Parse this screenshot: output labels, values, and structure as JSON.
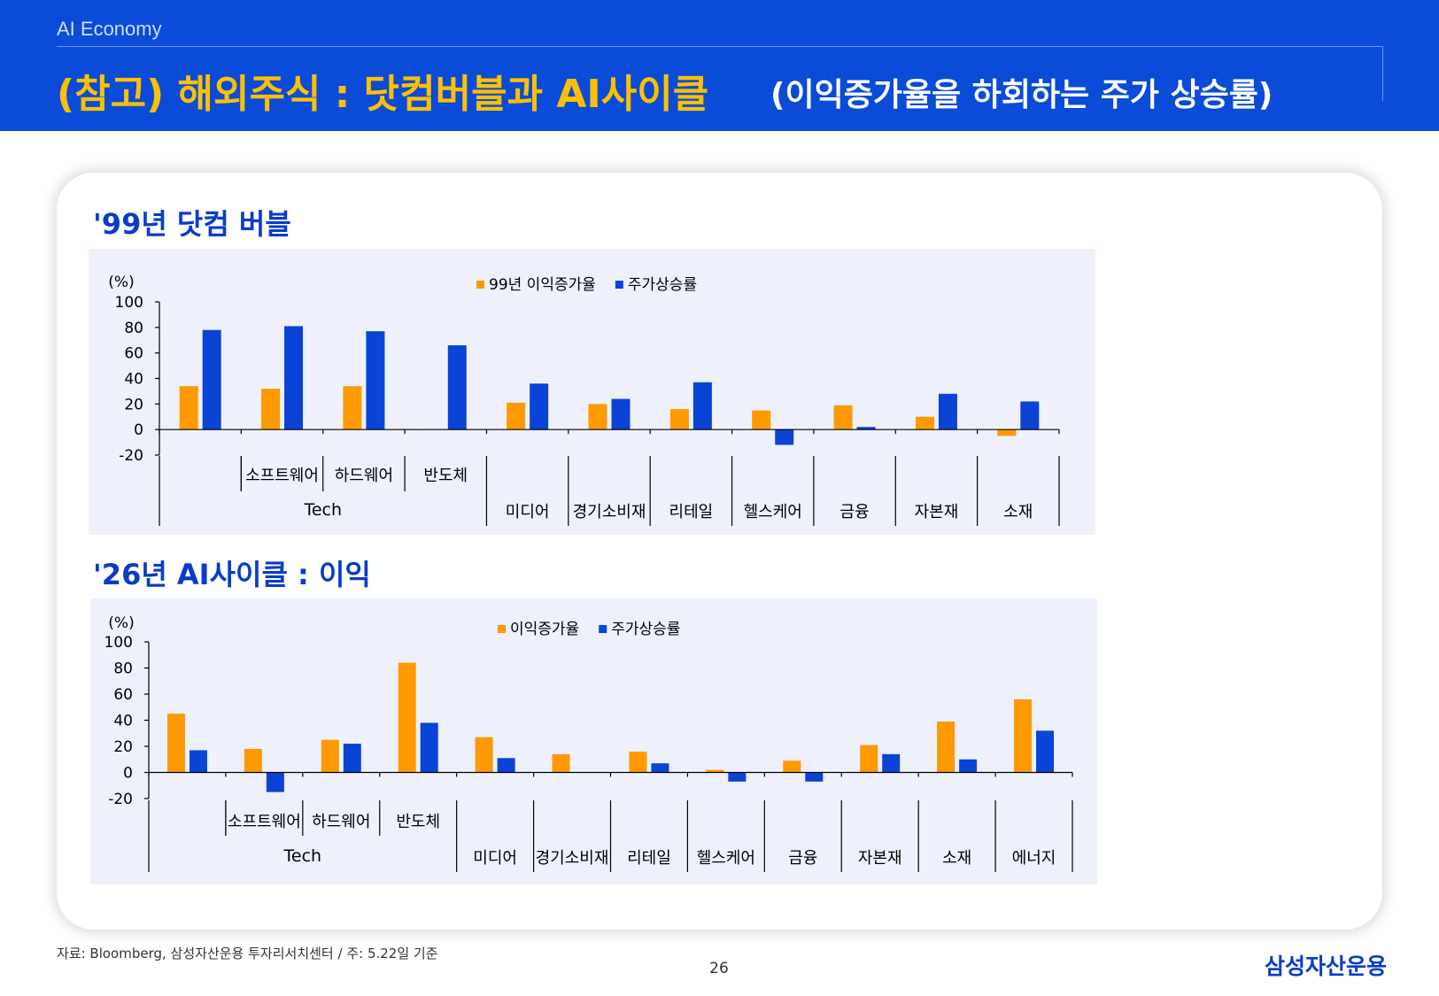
{
  "header": {
    "section": "AI Economy",
    "title": "(참고) 해외주식 : 닷컴버블과 AI사이클",
    "subtitle": "(이익증가율을 하회하는 주가 상승률)"
  },
  "footer": {
    "source": "자료: Bloomberg, 삼성자산운용 투자리서치센터 / 주: 5.22일 기준",
    "page_number": "26",
    "logo_text": "삼성자산운용"
  },
  "colors": {
    "earnings": "#ff9900",
    "price": "#0a44d6",
    "header_bg": "#0a4bd8",
    "title_accent": "#ffc000",
    "panel_bg": "#eef1fb"
  },
  "chart_data": [
    {
      "type": "bar",
      "title": "'99년 닷컴 버블",
      "ylabel": "(%)",
      "ylim": [
        -20,
        100
      ],
      "yticks": [
        -20,
        0,
        20,
        40,
        60,
        80,
        100
      ],
      "legend_position": "top-center",
      "categories": [
        "",
        "소프트웨어",
        "하드웨어",
        "반도체",
        "미디어",
        "경기소비재",
        "리테일",
        "헬스케어",
        "금융",
        "자본재",
        "소재"
      ],
      "group_label": {
        "text": "Tech",
        "span": [
          0,
          3
        ]
      },
      "series": [
        {
          "name": "99년 이익증가율",
          "color": "#ff9900",
          "values": [
            34,
            32,
            34,
            null,
            21,
            20,
            16,
            15,
            19,
            10,
            -5
          ]
        },
        {
          "name": "주가상승률",
          "color": "#0a44d6",
          "values": [
            78,
            81,
            77,
            66,
            36,
            24,
            37,
            -12,
            2,
            28,
            22
          ]
        }
      ]
    },
    {
      "type": "bar",
      "title": "'26년 AI사이클 : 이익",
      "ylabel": "(%)",
      "ylim": [
        -20,
        100
      ],
      "yticks": [
        -20,
        0,
        20,
        40,
        60,
        80,
        100
      ],
      "legend_position": "top-center",
      "categories": [
        "",
        "소프트웨어",
        "하드웨어",
        "반도체",
        "미디어",
        "경기소비재",
        "리테일",
        "헬스케어",
        "금융",
        "자본재",
        "소재",
        "에너지"
      ],
      "group_label": {
        "text": "Tech",
        "span": [
          0,
          3
        ]
      },
      "series": [
        {
          "name": "이익증가율",
          "color": "#ff9900",
          "values": [
            45,
            18,
            25,
            84,
            27,
            14,
            16,
            2,
            9,
            21,
            39,
            56
          ]
        },
        {
          "name": "주가상승률",
          "color": "#0a44d6",
          "values": [
            17,
            -15,
            22,
            38,
            11,
            null,
            7,
            -7,
            -7,
            14,
            10,
            32
          ]
        }
      ]
    }
  ]
}
